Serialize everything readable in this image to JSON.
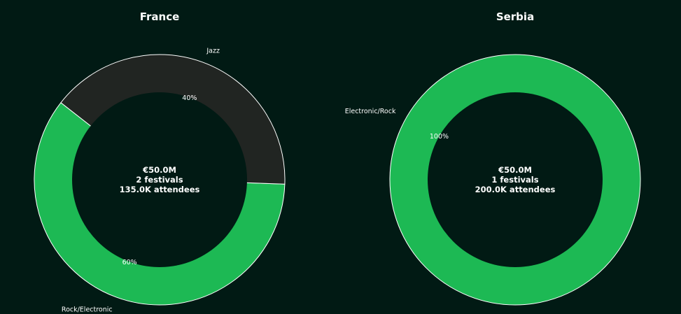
{
  "chart_data": [
    {
      "type": "pie",
      "title": "France",
      "categories": [
        "Rock/Electronic",
        "Jazz"
      ],
      "values": [
        60,
        40
      ],
      "percent_labels": [
        "60%",
        "40%"
      ],
      "colors": [
        "#1db954",
        "#212522"
      ],
      "center_lines": [
        "€50.0M",
        "2 festivals",
        "135.0K attendees"
      ]
    },
    {
      "type": "pie",
      "title": "Serbia",
      "categories": [
        "Electronic/Rock"
      ],
      "values": [
        100
      ],
      "percent_labels": [
        "100%"
      ],
      "colors": [
        "#1db954"
      ],
      "center_lines": [
        "€50.0M",
        "1 festivals",
        "200.0K attendees"
      ]
    }
  ],
  "colors": {
    "background": "#011a14",
    "hole": "#011a14",
    "edge": "#ffffff",
    "text": "#ffffff"
  }
}
